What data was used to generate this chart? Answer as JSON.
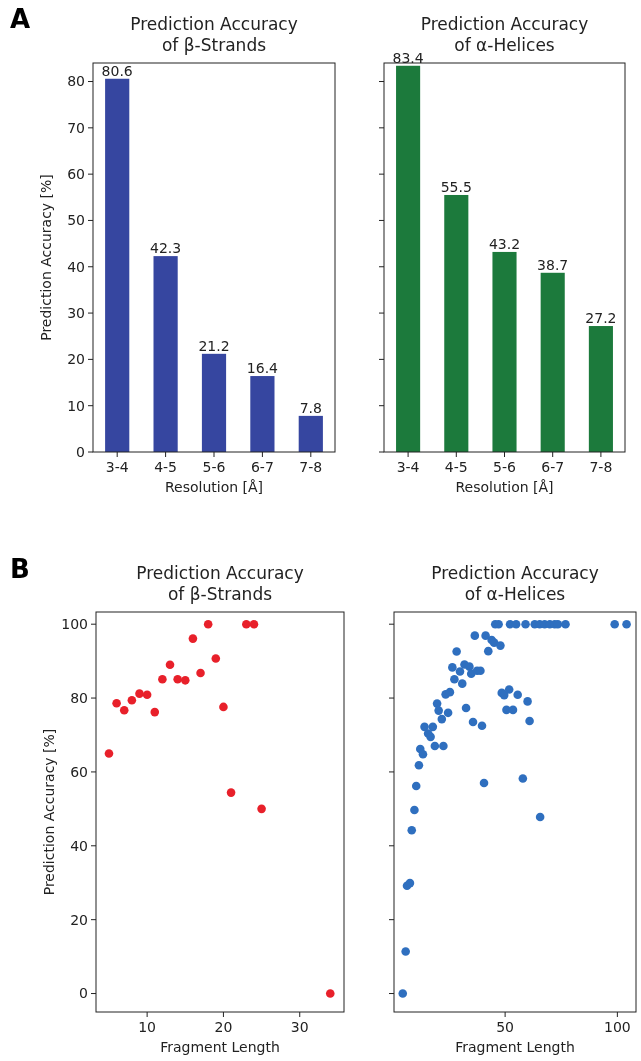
{
  "chart_data": [
    {
      "type": "bar",
      "title": "Prediction Accuracy\nof β-Strands",
      "xlabel": "Resolution [Å]",
      "ylabel": "Prediction Accuracy [%]",
      "annotations": [
        "A"
      ],
      "categories": [
        "3-4",
        "4-5",
        "5-6",
        "6-7",
        "7-8"
      ],
      "values": [
        80.6,
        42.3,
        21.2,
        16.4,
        7.8
      ],
      "color": "#3646a0",
      "data_labels": true,
      "ylim": [
        0,
        84
      ],
      "yticks": [
        0,
        10,
        20,
        30,
        40,
        50,
        60,
        70,
        80
      ],
      "grid": false
    },
    {
      "type": "bar",
      "title": "Prediction Accuracy\nof α-Helices",
      "xlabel": "Resolution [Å]",
      "categories": [
        "3-4",
        "4-5",
        "5-6",
        "6-7",
        "7-8"
      ],
      "values": [
        83.4,
        55.5,
        43.2,
        38.7,
        27.2
      ],
      "color": "#1c7a3c",
      "data_labels": true,
      "ylim": [
        0,
        84
      ],
      "yticks": [
        {
          "value": 0,
          "label": null
        },
        {
          "value": 10,
          "label": null
        },
        {
          "value": 20,
          "label": null
        },
        {
          "value": 30,
          "label": null
        },
        {
          "value": 40,
          "label": null
        },
        {
          "value": 50,
          "label": null
        },
        {
          "value": 60,
          "label": null
        },
        {
          "value": 70,
          "label": null
        },
        {
          "value": 80,
          "label": null
        }
      ],
      "tick_labels": "x",
      "grid": false
    },
    {
      "type": "scatter",
      "title": "Prediction Accuracy\nof β-Strands",
      "xlabel": "Fragment Length",
      "ylabel": "Prediction Accuracy [%]",
      "annotations": [
        "B"
      ],
      "x": [
        5,
        6,
        7,
        8,
        9,
        10,
        11,
        12,
        13,
        14,
        15,
        16,
        17,
        18,
        19,
        20,
        21,
        23,
        24,
        25,
        34
      ],
      "values": [
        65,
        78.6,
        76.7,
        79.4,
        81.2,
        80.9,
        76.2,
        85.1,
        89,
        85.1,
        84.8,
        96.1,
        86.8,
        100,
        90.7,
        77.6,
        54.4,
        100,
        100,
        50,
        0
      ],
      "color": "#e8202a",
      "marker": "circle",
      "xlim": [
        3.3,
        35.8
      ],
      "xticks": [
        10,
        20,
        30
      ],
      "ylim": [
        -5,
        103.3
      ],
      "yticks": [
        0,
        20,
        40,
        60,
        80,
        100
      ],
      "grid": false
    },
    {
      "type": "scatter",
      "title": "Prediction Accuracy\nof α-Helices",
      "xlabel": "Fragment Length",
      "x": [
        45.6,
        47.1,
        52.2,
        54.9,
        59.1,
        63.2,
        65.4,
        67.6,
        69.9,
        72.1,
        73.5,
        76.9,
        98.8,
        104.1,
        36.5,
        41.3,
        44,
        45.1,
        42.5,
        47.9,
        28.4,
        26.5,
        29.9,
        31.9,
        34.1,
        34.9,
        37.5,
        39,
        27.4,
        30.9,
        23.5,
        25.4,
        48.5,
        49.6,
        51.8,
        55.6,
        60,
        19.7,
        20.4,
        24.6,
        32.6,
        21.8,
        50.6,
        53.5,
        60.9,
        35.7,
        39.7,
        14.1,
        17.8,
        15.7,
        16.8,
        18.7,
        22.5,
        12.2,
        13.4,
        11.6,
        10.4,
        40.6,
        57.9,
        9.6,
        65.6,
        8.4,
        6.3,
        7.6,
        5.7,
        4.4
      ],
      "values": [
        100,
        100,
        100,
        100,
        100,
        100,
        100,
        100,
        100,
        100,
        100,
        100,
        100,
        100,
        96.9,
        96.9,
        95.7,
        95,
        92.7,
        94.2,
        92.6,
        88.3,
        87.2,
        89.1,
        88.5,
        86.6,
        87.4,
        87.4,
        85.1,
        83.9,
        81,
        81.6,
        81.4,
        80.8,
        82.3,
        80.9,
        79.1,
        78.5,
        76.6,
        76,
        77.3,
        74.3,
        76.8,
        76.8,
        73.8,
        73.5,
        72.5,
        72.2,
        72.2,
        70.4,
        69.5,
        67,
        67,
        66.2,
        64.8,
        61.8,
        56.2,
        57,
        58.2,
        49.7,
        47.8,
        44.2,
        29.2,
        29.9,
        11.4,
        0
      ],
      "color": "#2f6fbf",
      "marker": "circle",
      "xlim": [
        0.5,
        108.3
      ],
      "xticks": [
        50,
        100
      ],
      "ylim": [
        -5,
        103.3
      ],
      "yticks": [
        0,
        20,
        40,
        60,
        80,
        100
      ],
      "tick_labels": "x",
      "grid": false
    }
  ]
}
